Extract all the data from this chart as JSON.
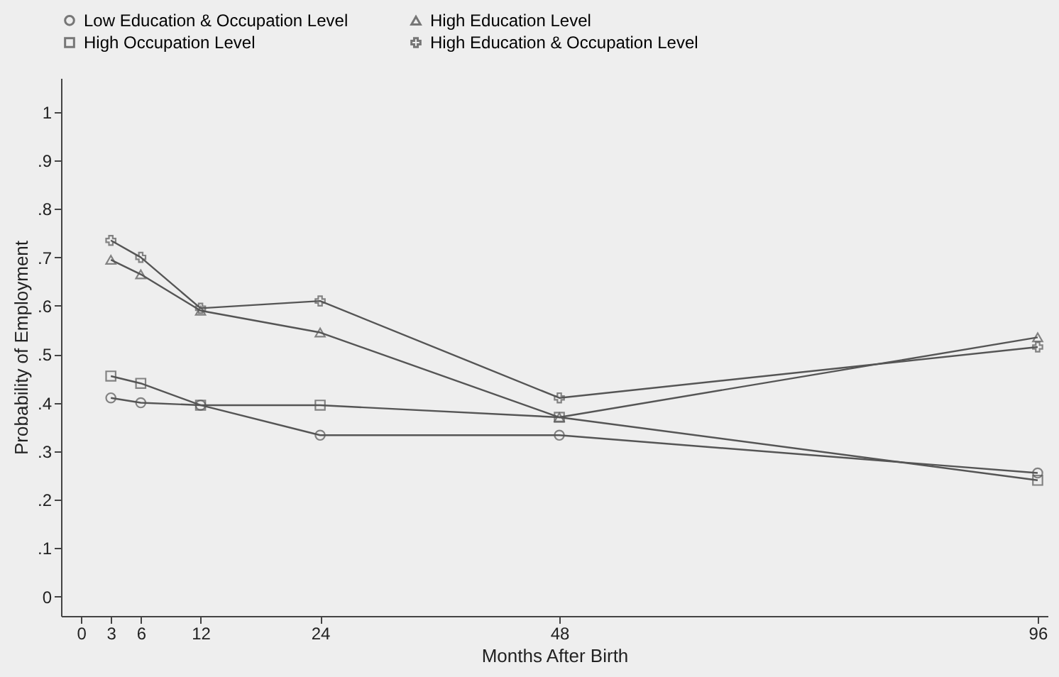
{
  "chart_data": {
    "type": "line",
    "xlabel": "Months After Birth",
    "ylabel": "Probability of Employment",
    "x": [
      3,
      6,
      12,
      24,
      48,
      96
    ],
    "xlim": [
      -2,
      97
    ],
    "xticks": [
      0,
      3,
      6,
      12,
      24,
      48,
      96
    ],
    "ylim": [
      -0.04,
      1.07
    ],
    "yticks": [
      0,
      {
        "value": 0.1,
        "label": ".1"
      },
      {
        "value": 0.2,
        "label": ".2"
      },
      {
        "value": 0.3,
        "label": ".3"
      },
      {
        "value": 0.4,
        "label": ".4"
      },
      {
        "value": 0.5,
        "label": ".5"
      },
      {
        "value": 0.6,
        "label": ".6"
      },
      {
        "value": 0.7,
        "label": ".7"
      },
      {
        "value": 0.8,
        "label": ".8"
      },
      {
        "value": 0.9,
        "label": ".9"
      },
      1
    ],
    "grid": false,
    "legend": "top",
    "line_style": "solid",
    "series": [
      {
        "name": "Low Education & Occupation Level",
        "color": "#555555",
        "marker": "circle",
        "values": [
          0.41,
          0.4,
          0.395,
          0.333,
          0.333,
          0.255
        ]
      },
      {
        "name": "High Education Level",
        "color": "#555555",
        "marker": "triangle",
        "values": [
          0.695,
          0.665,
          0.59,
          0.545,
          0.37,
          0.535
        ]
      },
      {
        "name": "High Occupation Level",
        "color": "#555555",
        "marker": "square",
        "values": [
          0.455,
          0.44,
          0.395,
          0.395,
          0.37,
          0.24
        ]
      },
      {
        "name": "High Education & Occupation Level",
        "color": "#555555",
        "marker": "cross",
        "values": [
          0.735,
          0.7,
          0.595,
          0.61,
          0.41,
          0.515
        ]
      }
    ]
  }
}
